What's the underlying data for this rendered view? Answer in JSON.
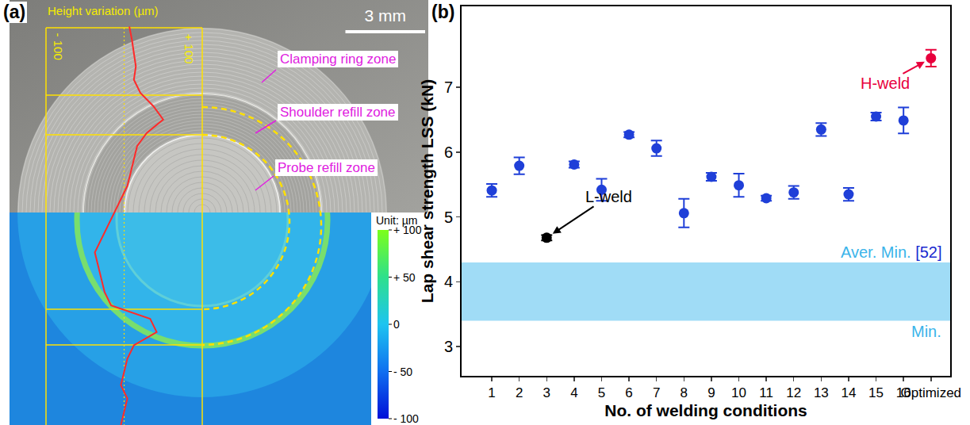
{
  "chart_data": [
    {
      "panel": "(a)",
      "type": "line",
      "xlabel": "Height variation (µm)",
      "x": [
        8,
        12,
        15,
        18,
        15,
        25,
        45,
        60,
        35,
        20,
        15,
        10,
        5,
        -5,
        -15,
        -25,
        -35,
        -45,
        -40,
        -35,
        -30,
        -20,
        40,
        50,
        15,
        5,
        0,
        -5,
        5,
        0,
        -5
      ],
      "y": [
        1.0,
        1.5,
        2.0,
        2.5,
        3.0,
        3.5,
        4.0,
        4.5,
        5.0,
        5.5,
        6.0,
        6.5,
        7.0,
        7.5,
        8.0,
        8.5,
        9.0,
        9.5,
        10.0,
        10.5,
        11.0,
        11.5,
        12.0,
        12.5,
        13.0,
        13.5,
        14.0,
        14.5,
        15.0,
        15.5,
        16.0
      ],
      "xlim": [
        -120,
        120
      ],
      "xticks": [
        {
          "value": -100,
          "label": "- 100"
        },
        {
          "value": 100,
          "label": "+ 100"
        }
      ],
      "ylim": [
        0,
        16
      ],
      "color": "#ff2a2a",
      "annotations": [
        "Clamping ring zone",
        "Shoulder refill zone",
        "Probe refill zone"
      ],
      "scale_bar": {
        "label": "3 mm",
        "length_mm": 3
      },
      "colorbar": {
        "title": "Unit: µm",
        "range": [
          -100,
          100
        ],
        "ticks": [
          {
            "value": 100,
            "label": "+ 100"
          },
          {
            "value": 50,
            "label": "+ 50"
          },
          0,
          {
            "value": -50,
            "label": "- 50"
          },
          {
            "value": -100,
            "label": "- 100"
          }
        ]
      }
    },
    {
      "panel": "(b)",
      "type": "scatter",
      "categories": [
        "1",
        "2",
        "3",
        "4",
        "5",
        "6",
        "7",
        "8",
        "9",
        "10",
        "11",
        "12",
        "13",
        "14",
        "15",
        "16",
        "Optimized"
      ],
      "values": [
        5.41,
        5.79,
        4.68,
        5.81,
        5.42,
        6.27,
        6.06,
        5.06,
        5.62,
        5.49,
        5.29,
        5.38,
        6.35,
        5.35,
        6.55,
        6.49,
        7.45
      ],
      "errors": [
        0.1,
        0.13,
        0.04,
        0.05,
        0.17,
        0.04,
        0.12,
        0.22,
        0.06,
        0.18,
        0.04,
        0.1,
        0.1,
        0.1,
        0.06,
        0.2,
        0.13
      ],
      "colors": [
        "#1f3fd8",
        "#1f3fd8",
        "#000000",
        "#1f3fd8",
        "#1f3fd8",
        "#1f3fd8",
        "#1f3fd8",
        "#1f3fd8",
        "#1f3fd8",
        "#1f3fd8",
        "#1f3fd8",
        "#1f3fd8",
        "#1f3fd8",
        "#1f3fd8",
        "#1f3fd8",
        "#1f3fd8",
        "#e8003c"
      ],
      "marker": "circle",
      "xlabel": "No. of welding conditions",
      "ylabel": "Lap shear strength LSS (kN)",
      "ylim": [
        2.55,
        8.25
      ],
      "yticks": [
        3,
        4,
        5,
        6,
        7
      ],
      "grid": false,
      "annotations": [
        {
          "text": "L-weld",
          "category": "3",
          "color": "#000000"
        },
        {
          "text": "H-weld",
          "category": "Optimized",
          "color": "#e8003c"
        }
      ],
      "band": {
        "min": 3.4,
        "max": 4.3,
        "color": "#a0dcf6",
        "upper_label": "Aver. Min.",
        "upper_ref": "[52]",
        "lower_label": "Min."
      }
    }
  ]
}
